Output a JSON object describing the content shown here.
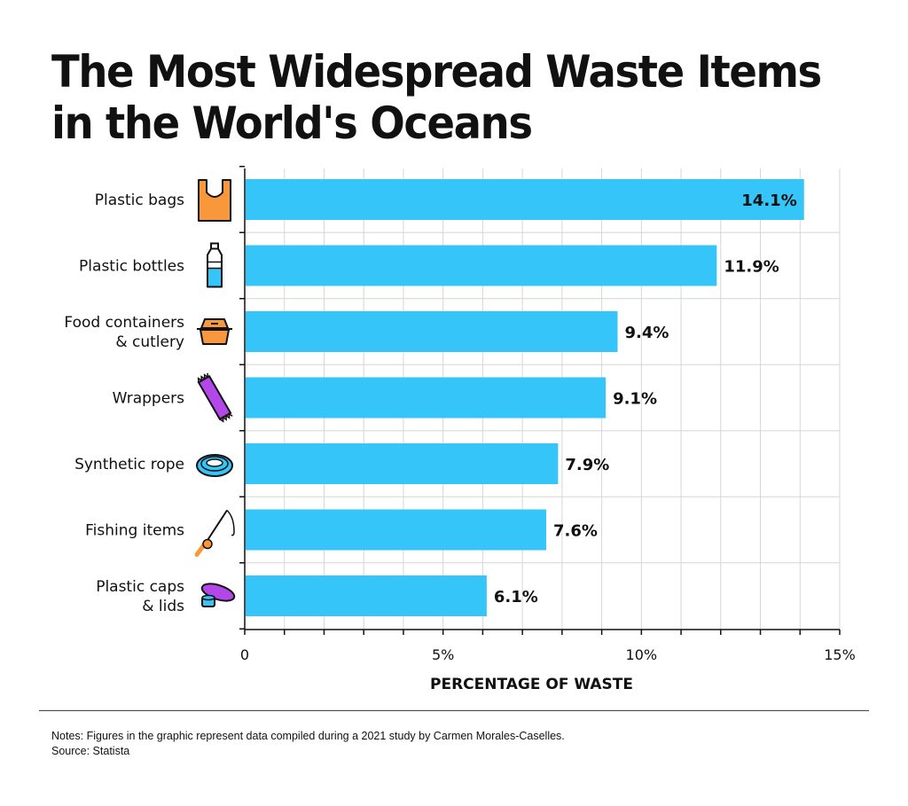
{
  "title_lines": [
    "The Most Widespread Waste Items",
    "in the World's Oceans"
  ],
  "notes": "Notes: Figures in the graphic represent data compiled during a 2021 study by Carmen Morales-Caselles.",
  "source": "Source: Statista",
  "colors": {
    "bar": "#36C5F8",
    "grid": "#d6d6d6",
    "axis": "#111111"
  },
  "chart_data": {
    "type": "bar",
    "orientation": "horizontal",
    "title": "The Most Widespread Waste Items in the World's Oceans",
    "xlabel": "PERCENTAGE OF WASTE",
    "ylabel": "",
    "xlim": [
      0,
      15
    ],
    "x_ticks": [
      0,
      5,
      10,
      15
    ],
    "x_tick_labels": [
      "0",
      "5%",
      "10%",
      "15%"
    ],
    "grid": true,
    "categories": [
      {
        "lines": [
          "Plastic bags"
        ],
        "icon": "plastic-bag-icon"
      },
      {
        "lines": [
          "Plastic bottles"
        ],
        "icon": "plastic-bottle-icon"
      },
      {
        "lines": [
          "Food containers",
          "& cutlery"
        ],
        "icon": "food-container-icon"
      },
      {
        "lines": [
          "Wrappers"
        ],
        "icon": "wrapper-icon"
      },
      {
        "lines": [
          "Synthetic rope"
        ],
        "icon": "rope-icon"
      },
      {
        "lines": [
          "Fishing items"
        ],
        "icon": "fishing-rod-icon"
      },
      {
        "lines": [
          "Plastic caps",
          "& lids"
        ],
        "icon": "cap-lid-icon"
      }
    ],
    "values": [
      14.1,
      11.9,
      9.4,
      9.1,
      7.9,
      7.6,
      6.1
    ],
    "value_labels": [
      "14.1%",
      "11.9%",
      "9.4%",
      "9.1%",
      "7.9%",
      "7.6%",
      "6.1%"
    ]
  }
}
